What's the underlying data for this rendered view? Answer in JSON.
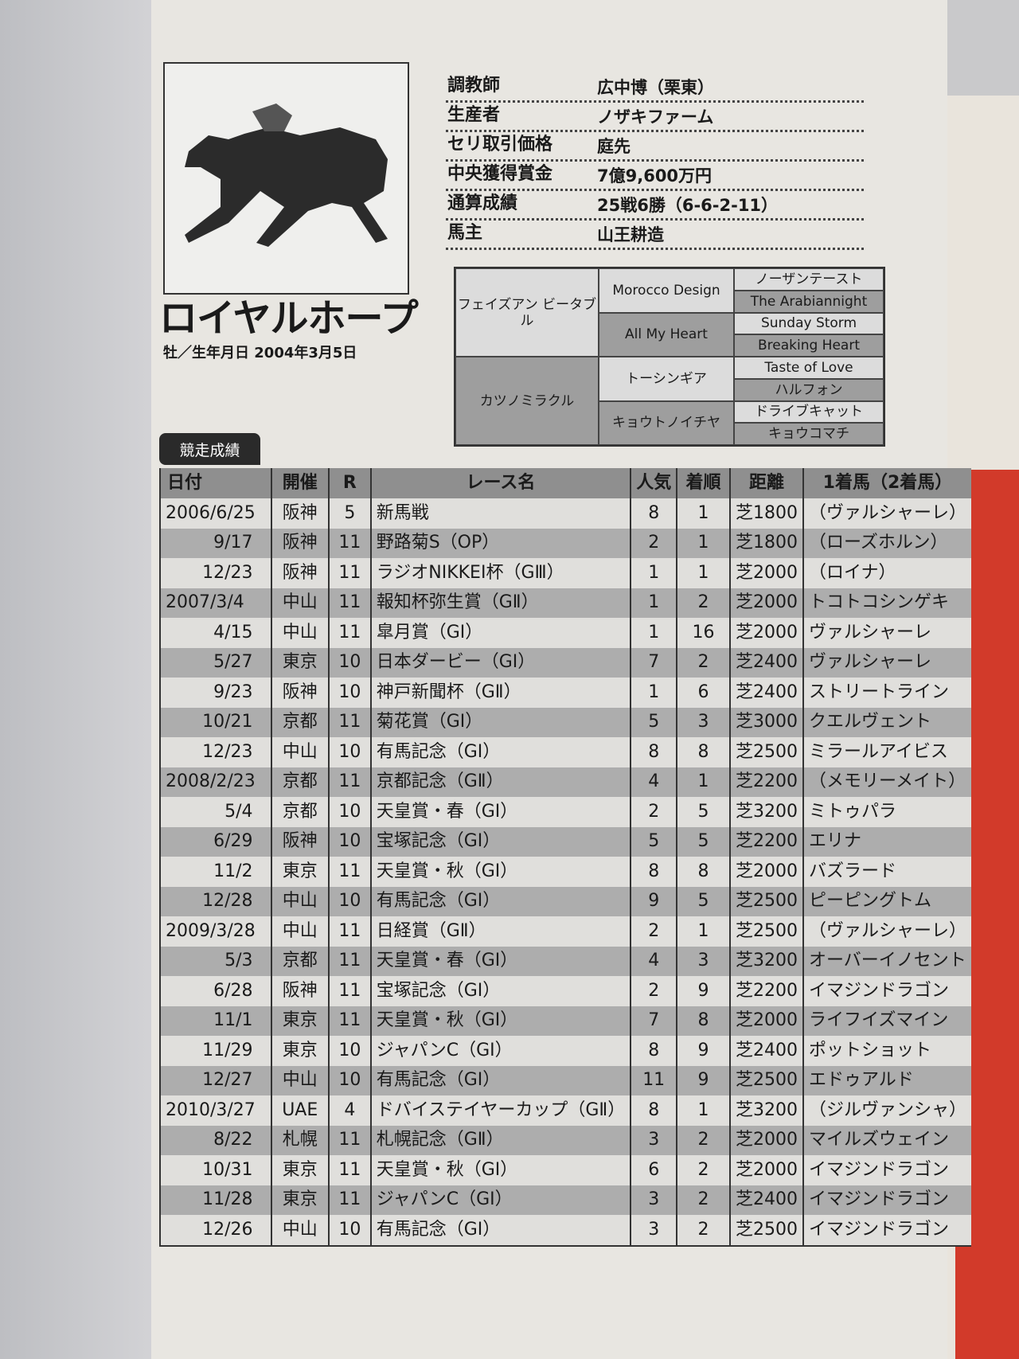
{
  "horse": {
    "name": "ロイヤルホープ",
    "birth": "牡／生年月日 2004年3月5日"
  },
  "info": [
    {
      "label": "調教師",
      "value": "広中博（栗東）"
    },
    {
      "label": "生産者",
      "value": "ノザキファーム"
    },
    {
      "label": "セリ取引価格",
      "value": "庭先"
    },
    {
      "label": "中央獲得賞金",
      "value": "7億9,600万円"
    },
    {
      "label": "通算成績",
      "value": "25戦6勝（6-6-2-11）"
    },
    {
      "label": "馬主",
      "value": "山王耕造"
    }
  ],
  "pedigree": {
    "sire": "フェイズアン ビータブル",
    "dam": "カツノミラクル",
    "gen2": [
      "Morocco Design",
      "All My Heart",
      "トーシンギア",
      "キョウトノイチヤ"
    ],
    "gen3": [
      "ノーザンテースト",
      "The Arabiannight",
      "Sunday Storm",
      "Breaking Heart",
      "Taste of Love",
      "ハルフォン",
      "ドライブキャット",
      "キョウコマチ"
    ]
  },
  "section_title": "競走成績",
  "table": {
    "headers": [
      "日付",
      "開催",
      "R",
      "レース名",
      "人気",
      "着順",
      "距離",
      "1着馬（2着馬）"
    ],
    "rows": [
      [
        "2006/6/25",
        "阪神",
        "5",
        "新馬戦",
        "8",
        "1",
        "芝1800",
        "（ヴァルシャーレ）"
      ],
      [
        "9/17",
        "阪神",
        "11",
        "野路菊S（OP）",
        "2",
        "1",
        "芝1800",
        "（ローズホルン）"
      ],
      [
        "12/23",
        "阪神",
        "11",
        "ラジオNIKKEI杯（GⅢ）",
        "1",
        "1",
        "芝2000",
        "（ロイナ）"
      ],
      [
        "2007/3/4",
        "中山",
        "11",
        "報知杯弥生賞（GⅡ）",
        "1",
        "2",
        "芝2000",
        "トコトコシンゲキ"
      ],
      [
        "4/15",
        "中山",
        "11",
        "皐月賞（GⅠ）",
        "1",
        "16",
        "芝2000",
        "ヴァルシャーレ"
      ],
      [
        "5/27",
        "東京",
        "10",
        "日本ダービー（GⅠ）",
        "7",
        "2",
        "芝2400",
        "ヴァルシャーレ"
      ],
      [
        "9/23",
        "阪神",
        "10",
        "神戸新聞杯（GⅡ）",
        "1",
        "6",
        "芝2400",
        "ストリートライン"
      ],
      [
        "10/21",
        "京都",
        "11",
        "菊花賞（GⅠ）",
        "5",
        "3",
        "芝3000",
        "クエルヴェント"
      ],
      [
        "12/23",
        "中山",
        "10",
        "有馬記念（GⅠ）",
        "8",
        "8",
        "芝2500",
        "ミラールアイビス"
      ],
      [
        "2008/2/23",
        "京都",
        "11",
        "京都記念（GⅡ）",
        "4",
        "1",
        "芝2200",
        "（メモリーメイト）"
      ],
      [
        "5/4",
        "京都",
        "10",
        "天皇賞・春（GⅠ）",
        "2",
        "5",
        "芝3200",
        "ミトゥパラ"
      ],
      [
        "6/29",
        "阪神",
        "10",
        "宝塚記念（GⅠ）",
        "5",
        "5",
        "芝2200",
        "エリナ"
      ],
      [
        "11/2",
        "東京",
        "11",
        "天皇賞・秋（GⅠ）",
        "8",
        "8",
        "芝2000",
        "バズラード"
      ],
      [
        "12/28",
        "中山",
        "10",
        "有馬記念（GⅠ）",
        "9",
        "5",
        "芝2500",
        "ピーピングトム"
      ],
      [
        "2009/3/28",
        "中山",
        "11",
        "日経賞（GⅡ）",
        "2",
        "1",
        "芝2500",
        "（ヴァルシャーレ）"
      ],
      [
        "5/3",
        "京都",
        "11",
        "天皇賞・春（GⅠ）",
        "4",
        "3",
        "芝3200",
        "オーバーイノセント"
      ],
      [
        "6/28",
        "阪神",
        "11",
        "宝塚記念（GⅠ）",
        "2",
        "9",
        "芝2200",
        "イマジンドラゴン"
      ],
      [
        "11/1",
        "東京",
        "11",
        "天皇賞・秋（GⅠ）",
        "7",
        "8",
        "芝2000",
        "ライフイズマイン"
      ],
      [
        "11/29",
        "東京",
        "10",
        "ジャパンC（GⅠ）",
        "8",
        "9",
        "芝2400",
        "ポットショット"
      ],
      [
        "12/27",
        "中山",
        "10",
        "有馬記念（GⅠ）",
        "11",
        "9",
        "芝2500",
        "エドゥアルド"
      ],
      [
        "2010/3/27",
        "UAE",
        "4",
        "ドバイステイヤーカップ（GⅡ）",
        "8",
        "1",
        "芝3200",
        "（ジルヴァンシャ）"
      ],
      [
        "8/22",
        "札幌",
        "11",
        "札幌記念（GⅡ）",
        "3",
        "2",
        "芝2000",
        "マイルズウェイン"
      ],
      [
        "10/31",
        "東京",
        "11",
        "天皇賞・秋（GⅠ）",
        "6",
        "2",
        "芝2000",
        "イマジンドラゴン"
      ],
      [
        "11/28",
        "東京",
        "11",
        "ジャパンC（GⅠ）",
        "3",
        "2",
        "芝2400",
        "イマジンドラゴン"
      ],
      [
        "12/26",
        "中山",
        "10",
        "有馬記念（GⅠ）",
        "3",
        "2",
        "芝2500",
        "イマジンドラゴン"
      ]
    ]
  }
}
